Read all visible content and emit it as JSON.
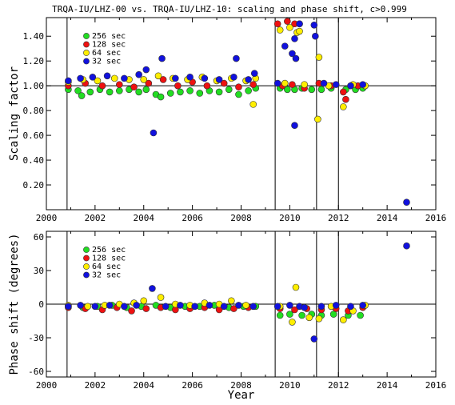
{
  "title": "TRQA-IU/LHZ-00 vs. TRQA-IU/LHZ-10: scaling and phase shift, c>0.999",
  "colors": {
    "256 sec": "#22dd22",
    "128 sec": "#ee1111",
    "64 sec": "#ffee00",
    "32 sec": "#1111dd"
  },
  "chart_data": [
    {
      "type": "scatter",
      "ylabel": "Scaling factor",
      "xlabel": "",
      "xlim": [
        2000,
        2016
      ],
      "ylim": [
        0,
        1.55
      ],
      "x_ticks": [
        2000,
        2002,
        2004,
        2006,
        2008,
        2010,
        2012,
        2014,
        2016
      ],
      "y_ticks": [
        0.2,
        0.4,
        0.6,
        0.8,
        1.0,
        1.2,
        1.4
      ],
      "y_tick_labels": [
        "0.20",
        "0.40",
        "0.60",
        "0.80",
        "1.00",
        "1.20",
        "1.40"
      ],
      "reference_line": 1.0,
      "vertical_lines": [
        2000.85,
        2009.4,
        2011.1,
        2012.0
      ],
      "legend_position": "top-left",
      "series": [
        {
          "name": "256 sec",
          "points": [
            [
              2000.9,
              0.97
            ],
            [
              2001.3,
              0.96
            ],
            [
              2001.45,
              0.92
            ],
            [
              2001.8,
              0.95
            ],
            [
              2002.2,
              0.97
            ],
            [
              2002.6,
              0.95
            ],
            [
              2003.0,
              0.96
            ],
            [
              2003.4,
              0.97
            ],
            [
              2003.8,
              0.95
            ],
            [
              2004.1,
              0.97
            ],
            [
              2004.5,
              0.93
            ],
            [
              2004.7,
              0.91
            ],
            [
              2005.1,
              0.94
            ],
            [
              2005.5,
              0.95
            ],
            [
              2005.9,
              0.96
            ],
            [
              2006.3,
              0.94
            ],
            [
              2006.7,
              0.96
            ],
            [
              2007.1,
              0.95
            ],
            [
              2007.5,
              0.97
            ],
            [
              2007.9,
              0.93
            ],
            [
              2008.3,
              0.96
            ],
            [
              2008.6,
              0.98
            ],
            [
              2009.6,
              0.98
            ],
            [
              2009.9,
              0.97
            ],
            [
              2010.2,
              0.97
            ],
            [
              2010.5,
              0.98
            ],
            [
              2010.9,
              0.97
            ],
            [
              2011.3,
              0.97
            ],
            [
              2011.7,
              0.98
            ],
            [
              2012.3,
              0.97
            ],
            [
              2012.7,
              0.97
            ],
            [
              2013.0,
              0.98
            ]
          ]
        },
        {
          "name": "128 sec",
          "points": [
            [
              2000.9,
              1.0
            ],
            [
              2001.6,
              1.02
            ],
            [
              2002.3,
              1.0
            ],
            [
              2003.0,
              1.01
            ],
            [
              2003.6,
              0.99
            ],
            [
              2004.2,
              1.02
            ],
            [
              2004.8,
              1.05
            ],
            [
              2005.4,
              1.0
            ],
            [
              2006.0,
              1.03
            ],
            [
              2006.6,
              1.0
            ],
            [
              2007.3,
              1.02
            ],
            [
              2007.9,
              0.99
            ],
            [
              2008.5,
              1.01
            ],
            [
              2009.5,
              1.5
            ],
            [
              2009.9,
              1.52
            ],
            [
              2010.2,
              1.5
            ],
            [
              2010.4,
              1.5
            ],
            [
              2009.7,
              1.0
            ],
            [
              2010.1,
              1.01
            ],
            [
              2010.6,
              0.98
            ],
            [
              2011.2,
              1.02
            ],
            [
              2011.7,
              1.0
            ],
            [
              2012.2,
              0.95
            ],
            [
              2012.3,
              0.89
            ],
            [
              2012.8,
              1.0
            ]
          ]
        },
        {
          "name": "64 sec",
          "points": [
            [
              2000.9,
              1.03
            ],
            [
              2001.5,
              1.05
            ],
            [
              2002.1,
              1.04
            ],
            [
              2002.8,
              1.06
            ],
            [
              2003.4,
              1.05
            ],
            [
              2004.0,
              1.05
            ],
            [
              2004.6,
              1.08
            ],
            [
              2005.2,
              1.06
            ],
            [
              2005.8,
              1.05
            ],
            [
              2006.4,
              1.07
            ],
            [
              2007.0,
              1.04
            ],
            [
              2007.6,
              1.06
            ],
            [
              2008.2,
              1.04
            ],
            [
              2008.6,
              1.06
            ],
            [
              2008.5,
              0.85
            ],
            [
              2009.6,
              1.45
            ],
            [
              2010.0,
              1.47
            ],
            [
              2010.3,
              1.43
            ],
            [
              2010.4,
              1.44
            ],
            [
              2009.8,
              1.02
            ],
            [
              2010.6,
              1.01
            ],
            [
              2011.2,
              1.23
            ],
            [
              2011.15,
              0.73
            ],
            [
              2011.6,
              1.0
            ],
            [
              2012.2,
              0.83
            ],
            [
              2012.6,
              1.01
            ],
            [
              2013.1,
              1.0
            ]
          ]
        },
        {
          "name": "32 sec",
          "points": [
            [
              2000.9,
              1.04
            ],
            [
              2001.4,
              1.06
            ],
            [
              2001.9,
              1.07
            ],
            [
              2002.5,
              1.08
            ],
            [
              2003.2,
              1.06
            ],
            [
              2003.8,
              1.09
            ],
            [
              2004.1,
              1.13
            ],
            [
              2004.4,
              0.62
            ],
            [
              2004.75,
              1.22
            ],
            [
              2005.3,
              1.06
            ],
            [
              2005.9,
              1.07
            ],
            [
              2006.5,
              1.06
            ],
            [
              2007.1,
              1.05
            ],
            [
              2007.7,
              1.07
            ],
            [
              2007.8,
              1.22
            ],
            [
              2008.3,
              1.05
            ],
            [
              2008.55,
              1.1
            ],
            [
              2009.5,
              1.02
            ],
            [
              2009.8,
              1.32
            ],
            [
              2010.1,
              1.26
            ],
            [
              2010.2,
              1.38
            ],
            [
              2010.25,
              1.22
            ],
            [
              2010.4,
              1.5
            ],
            [
              2010.2,
              0.68
            ],
            [
              2011.0,
              1.49
            ],
            [
              2011.05,
              1.4
            ],
            [
              2011.4,
              1.02
            ],
            [
              2011.9,
              1.01
            ],
            [
              2012.5,
              1.0
            ],
            [
              2013.0,
              1.01
            ],
            [
              2014.8,
              0.06
            ]
          ]
        }
      ]
    },
    {
      "type": "scatter",
      "ylabel": "Phase shift (degrees)",
      "xlabel": "Year",
      "xlim": [
        2000,
        2016
      ],
      "ylim": [
        -65,
        65
      ],
      "x_ticks": [
        2000,
        2002,
        2004,
        2006,
        2008,
        2010,
        2012,
        2014,
        2016
      ],
      "y_ticks": [
        -60,
        -30,
        0,
        30,
        60
      ],
      "y_tick_labels": [
        "-60",
        "-30",
        "0",
        "30",
        "60"
      ],
      "reference_line": 0,
      "vertical_lines": [
        2000.85,
        2009.4,
        2011.1,
        2012.0
      ],
      "legend_position": "top-left",
      "series": [
        {
          "name": "256 sec",
          "points": [
            [
              2000.9,
              -2
            ],
            [
              2001.5,
              -3
            ],
            [
              2002.1,
              -2
            ],
            [
              2002.7,
              -1
            ],
            [
              2003.3,
              -3
            ],
            [
              2003.9,
              -2
            ],
            [
              2004.5,
              -1
            ],
            [
              2005.1,
              -3
            ],
            [
              2005.7,
              -2
            ],
            [
              2006.3,
              -2
            ],
            [
              2006.9,
              -1
            ],
            [
              2007.5,
              -3
            ],
            [
              2008.1,
              -2
            ],
            [
              2008.6,
              -2
            ],
            [
              2009.6,
              -10
            ],
            [
              2010.0,
              -9
            ],
            [
              2010.5,
              -10
            ],
            [
              2010.9,
              -9
            ],
            [
              2011.3,
              -10
            ],
            [
              2011.8,
              -9
            ],
            [
              2012.4,
              -10
            ],
            [
              2012.9,
              -10
            ]
          ]
        },
        {
          "name": "128 sec",
          "points": [
            [
              2000.9,
              -3
            ],
            [
              2001.6,
              -4
            ],
            [
              2002.3,
              -5
            ],
            [
              2002.9,
              -3
            ],
            [
              2003.5,
              -6
            ],
            [
              2004.1,
              -4
            ],
            [
              2004.7,
              -3
            ],
            [
              2005.3,
              -5
            ],
            [
              2005.9,
              -4
            ],
            [
              2006.5,
              -3
            ],
            [
              2007.1,
              -5
            ],
            [
              2007.7,
              -4
            ],
            [
              2008.3,
              -3
            ],
            [
              2009.6,
              -4
            ],
            [
              2010.2,
              -5
            ],
            [
              2010.7,
              -4
            ],
            [
              2011.3,
              -5
            ],
            [
              2011.9,
              -4
            ],
            [
              2012.4,
              -6
            ],
            [
              2013.0,
              -3
            ]
          ]
        },
        {
          "name": "64 sec",
          "points": [
            [
              2000.9,
              -1
            ],
            [
              2001.7,
              -2
            ],
            [
              2002.4,
              -1
            ],
            [
              2003.0,
              0
            ],
            [
              2003.6,
              1
            ],
            [
              2004.0,
              3
            ],
            [
              2004.7,
              6
            ],
            [
              2005.3,
              0
            ],
            [
              2005.9,
              -1
            ],
            [
              2006.5,
              1
            ],
            [
              2007.1,
              0
            ],
            [
              2007.6,
              3
            ],
            [
              2008.2,
              -1
            ],
            [
              2009.6,
              -2
            ],
            [
              2010.1,
              -16
            ],
            [
              2010.25,
              15
            ],
            [
              2010.8,
              -12
            ],
            [
              2011.2,
              -13
            ],
            [
              2011.7,
              -2
            ],
            [
              2012.2,
              -14
            ],
            [
              2012.6,
              -6
            ],
            [
              2013.1,
              -1
            ]
          ]
        },
        {
          "name": "32 sec",
          "points": [
            [
              2000.9,
              -2
            ],
            [
              2001.4,
              -1
            ],
            [
              2002.0,
              -2
            ],
            [
              2002.6,
              -1
            ],
            [
              2003.2,
              -2
            ],
            [
              2003.7,
              -1
            ],
            [
              2004.35,
              14
            ],
            [
              2004.9,
              -2
            ],
            [
              2005.5,
              -1
            ],
            [
              2006.1,
              -2
            ],
            [
              2006.7,
              -1
            ],
            [
              2007.3,
              -2
            ],
            [
              2007.9,
              -1
            ],
            [
              2008.5,
              -2
            ],
            [
              2009.5,
              -2
            ],
            [
              2010.0,
              -1
            ],
            [
              2010.4,
              -2
            ],
            [
              2010.6,
              -3
            ],
            [
              2011.0,
              -31
            ],
            [
              2011.3,
              -2
            ],
            [
              2011.9,
              -1
            ],
            [
              2012.5,
              -2
            ],
            [
              2013.0,
              -1
            ],
            [
              2014.8,
              52
            ]
          ]
        }
      ]
    }
  ]
}
